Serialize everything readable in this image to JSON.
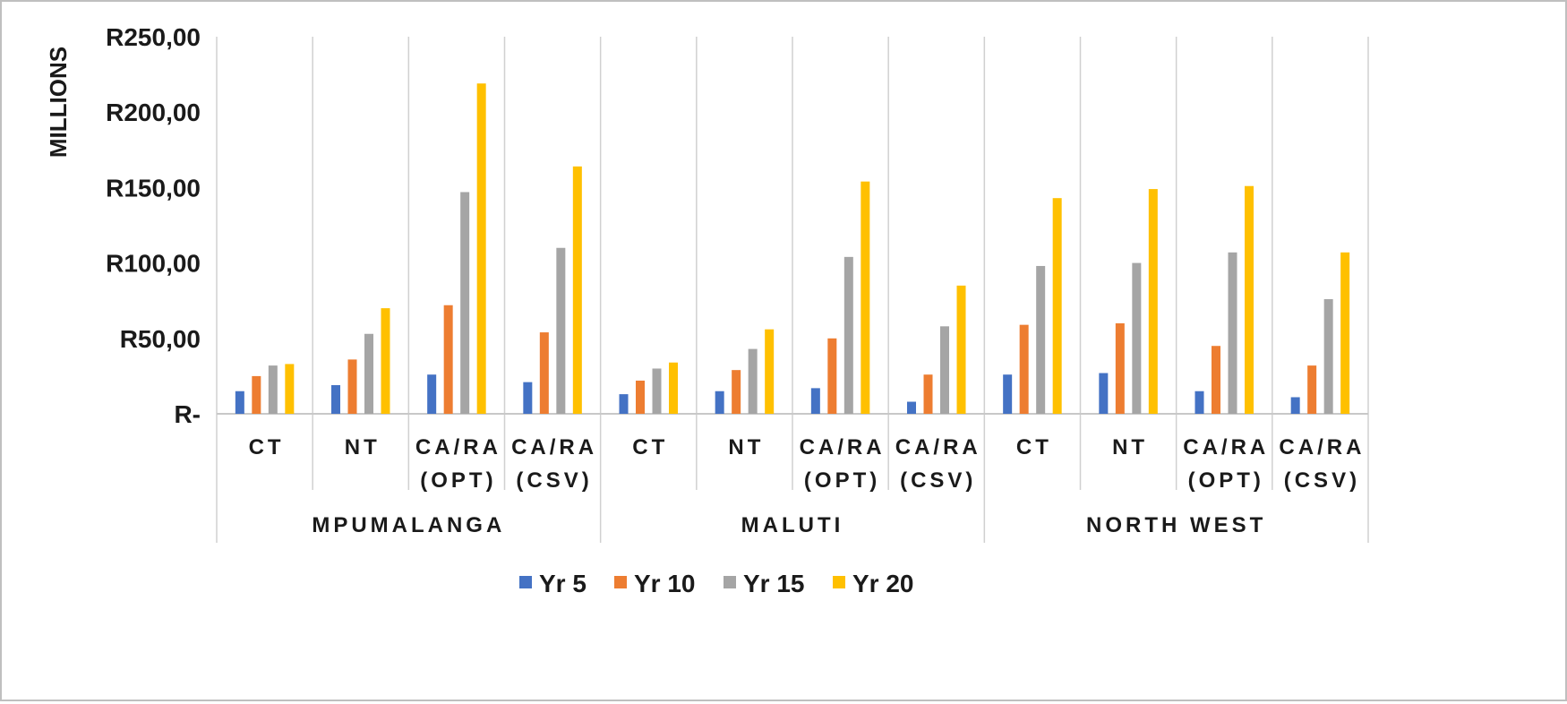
{
  "chart_data": {
    "type": "bar",
    "title": "",
    "xlabel": "",
    "ylabel": "MILLIONS",
    "ylim": [
      0,
      250
    ],
    "yticks": [
      0,
      50,
      100,
      150,
      200,
      250
    ],
    "ytick_labels": [
      "R-",
      "R50,00",
      "R100,00",
      "R150,00",
      "R200,00",
      "R250,00"
    ],
    "grid": false,
    "legend_position": "bottom",
    "groups": [
      {
        "name": "MPUMALANGA",
        "categories": [
          {
            "lines": [
              "CT"
            ]
          },
          {
            "lines": [
              "NT"
            ]
          },
          {
            "lines": [
              "CA/RA",
              "(OPT)"
            ]
          },
          {
            "lines": [
              "CA/RA",
              "(CSV)"
            ]
          }
        ]
      },
      {
        "name": "MALUTI",
        "categories": [
          {
            "lines": [
              "CT"
            ]
          },
          {
            "lines": [
              "NT"
            ]
          },
          {
            "lines": [
              "CA/RA",
              "(OPT)"
            ]
          },
          {
            "lines": [
              "CA/RA",
              "(CSV)"
            ]
          }
        ]
      },
      {
        "name": "NORTH WEST",
        "categories": [
          {
            "lines": [
              "CT"
            ]
          },
          {
            "lines": [
              "NT"
            ]
          },
          {
            "lines": [
              "CA/RA",
              "(OPT)"
            ]
          },
          {
            "lines": [
              "CA/RA",
              "(CSV)"
            ]
          }
        ]
      }
    ],
    "series": [
      {
        "name": "Yr 5",
        "color": "#4472c4",
        "values": [
          15,
          19,
          26,
          21,
          13,
          15,
          17,
          8,
          26,
          27,
          15,
          11
        ]
      },
      {
        "name": "Yr 10",
        "color": "#ed7d31",
        "values": [
          25,
          36,
          72,
          54,
          22,
          29,
          50,
          26,
          59,
          60,
          45,
          32
        ]
      },
      {
        "name": "Yr 15",
        "color": "#a5a5a5",
        "values": [
          32,
          53,
          147,
          110,
          30,
          43,
          104,
          58,
          98,
          100,
          107,
          76
        ]
      },
      {
        "name": "Yr 20",
        "color": "#ffc000",
        "values": [
          33,
          70,
          219,
          164,
          34,
          56,
          154,
          85,
          143,
          149,
          151,
          107
        ]
      }
    ]
  }
}
